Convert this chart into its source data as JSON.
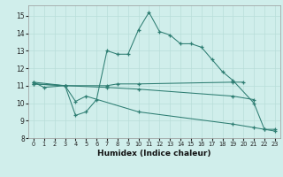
{
  "line1_x": [
    0,
    1,
    3,
    4,
    5,
    6,
    7,
    8,
    9,
    10,
    11,
    12,
    13,
    14,
    15,
    16,
    17,
    18,
    19,
    21,
    22,
    23
  ],
  "line1_y": [
    11.2,
    10.9,
    11.0,
    9.3,
    9.5,
    10.2,
    13.0,
    12.8,
    12.8,
    14.2,
    15.2,
    14.1,
    13.9,
    13.4,
    13.4,
    13.2,
    12.5,
    11.8,
    11.3,
    10.0,
    8.5,
    8.5
  ],
  "line2_x": [
    0,
    3,
    7,
    8,
    10,
    19,
    20
  ],
  "line2_y": [
    11.2,
    11.0,
    11.0,
    11.1,
    11.1,
    11.2,
    11.2
  ],
  "line3_x": [
    0,
    3,
    7,
    10,
    19,
    21
  ],
  "line3_y": [
    11.1,
    11.0,
    10.9,
    10.8,
    10.4,
    10.2
  ],
  "line4_x": [
    0,
    3,
    4,
    5,
    10,
    19,
    21,
    22,
    23
  ],
  "line4_y": [
    11.1,
    11.0,
    10.1,
    10.4,
    9.5,
    8.8,
    8.6,
    8.5,
    8.4
  ],
  "color": "#2d7d72",
  "bg_color": "#d0eeeb",
  "grid_color": "#b8ddd9",
  "xlabel": "Humidex (Indice chaleur)",
  "xlim": [
    -0.5,
    23.5
  ],
  "ylim": [
    8.0,
    15.6
  ],
  "yticks": [
    8,
    9,
    10,
    11,
    12,
    13,
    14,
    15
  ],
  "xticks": [
    0,
    1,
    2,
    3,
    4,
    5,
    6,
    7,
    8,
    9,
    10,
    11,
    12,
    13,
    14,
    15,
    16,
    17,
    18,
    19,
    20,
    21,
    22,
    23
  ]
}
